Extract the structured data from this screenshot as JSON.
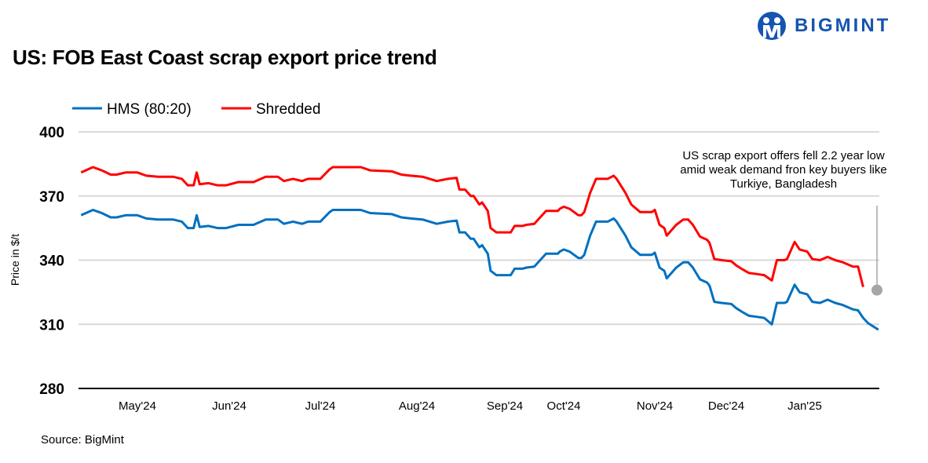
{
  "title": "US: FOB East Coast scrap export price trend",
  "logo": {
    "text": "BIGMINT",
    "color": "#1555b0"
  },
  "source": "Source: BigMint",
  "chart_data": {
    "type": "line",
    "title": "US: FOB East Coast scrap export price trend",
    "ylabel": "Price in $/t",
    "xlabel": "",
    "ylim": [
      280,
      400
    ],
    "y_ticks": [
      280,
      310,
      340,
      370,
      400
    ],
    "x_ticks": [
      "May'24",
      "Jun'24",
      "Jul'24",
      "Aug'24",
      "Sep'24",
      "Oct'24",
      "Nov'24",
      "Dec'24",
      "Jan'25"
    ],
    "grid": "horizontal",
    "legend": "top-left",
    "annotation": {
      "text_lines": [
        "US scrap export offers fell 2.2 year low",
        "amid weak demand fron key buyers like",
        "Turkiye, Bangladesh"
      ],
      "color": "#a6a6a6"
    },
    "series": [
      {
        "name": "HMS (80:20)",
        "color": "#0070c0",
        "points": [
          [
            "2024-04-12",
            361
          ],
          [
            "2024-04-16",
            363.5
          ],
          [
            "2024-04-19",
            362
          ],
          [
            "2024-04-22",
            360
          ],
          [
            "2024-04-24",
            360
          ],
          [
            "2024-04-27",
            361
          ],
          [
            "2024-05-01",
            361
          ],
          [
            "2024-05-04",
            359.5
          ],
          [
            "2024-05-08",
            359
          ],
          [
            "2024-05-13",
            359
          ],
          [
            "2024-05-16",
            358
          ],
          [
            "2024-05-18",
            355
          ],
          [
            "2024-05-20",
            355
          ],
          [
            "2024-05-21",
            361
          ],
          [
            "2024-05-22",
            355.5
          ],
          [
            "2024-05-25",
            356
          ],
          [
            "2024-05-28",
            355
          ],
          [
            "2024-05-31",
            355
          ],
          [
            "2024-06-04",
            356.5
          ],
          [
            "2024-06-09",
            356.5
          ],
          [
            "2024-06-13",
            359
          ],
          [
            "2024-06-17",
            359
          ],
          [
            "2024-06-19",
            357
          ],
          [
            "2024-06-22",
            358
          ],
          [
            "2024-06-25",
            357
          ],
          [
            "2024-06-27",
            358
          ],
          [
            "2024-07-01",
            358
          ],
          [
            "2024-07-04",
            362.5
          ],
          [
            "2024-07-05",
            363.5
          ],
          [
            "2024-07-14",
            363.5
          ],
          [
            "2024-07-17",
            362
          ],
          [
            "2024-07-24",
            361.5
          ],
          [
            "2024-07-27",
            360
          ],
          [
            "2024-07-30",
            359.5
          ],
          [
            "2024-08-03",
            359
          ],
          [
            "2024-08-08",
            357
          ],
          [
            "2024-08-12",
            358
          ],
          [
            "2024-08-15",
            358.5
          ],
          [
            "2024-08-16",
            353
          ],
          [
            "2024-08-18",
            353
          ],
          [
            "2024-08-20",
            350
          ],
          [
            "2024-08-21",
            350
          ],
          [
            "2024-08-23",
            346
          ],
          [
            "2024-08-24",
            347
          ],
          [
            "2024-08-26",
            343
          ],
          [
            "2024-08-27",
            335
          ],
          [
            "2024-08-29",
            333
          ],
          [
            "2024-08-31",
            333
          ],
          [
            "2024-09-04",
            333
          ],
          [
            "2024-09-06",
            336
          ],
          [
            "2024-09-10",
            336
          ],
          [
            "2024-09-12",
            336.5
          ],
          [
            "2024-09-16",
            337
          ],
          [
            "2024-09-19",
            340
          ],
          [
            "2024-09-22",
            343
          ],
          [
            "2024-09-28",
            343
          ],
          [
            "2024-09-29",
            344
          ],
          [
            "2024-10-01",
            345
          ],
          [
            "2024-10-03",
            344
          ],
          [
            "2024-10-06",
            341
          ],
          [
            "2024-10-07",
            341
          ],
          [
            "2024-10-08",
            342.5
          ],
          [
            "2024-10-10",
            351.5
          ],
          [
            "2024-10-12",
            358
          ],
          [
            "2024-10-16",
            358
          ],
          [
            "2024-10-18",
            359.5
          ],
          [
            "2024-10-19",
            358
          ],
          [
            "2024-10-22",
            351.5
          ],
          [
            "2024-10-24",
            346
          ],
          [
            "2024-10-27",
            342.5
          ],
          [
            "2024-10-31",
            342.5
          ],
          [
            "2024-11-01",
            343.5
          ],
          [
            "2024-11-03",
            336.5
          ],
          [
            "2024-11-05",
            335
          ],
          [
            "2024-11-06",
            331.5
          ],
          [
            "2024-11-10",
            336.5
          ],
          [
            "2024-11-13",
            339
          ],
          [
            "2024-11-15",
            339
          ],
          [
            "2024-11-17",
            336.5
          ],
          [
            "2024-11-20",
            331
          ],
          [
            "2024-11-23",
            329.5
          ],
          [
            "2024-11-24",
            328
          ],
          [
            "2024-11-26",
            320.5
          ],
          [
            "2024-11-29",
            320
          ],
          [
            "2024-12-03",
            319.5
          ],
          [
            "2024-12-05",
            317.5
          ],
          [
            "2024-12-07",
            316
          ],
          [
            "2024-12-10",
            314
          ],
          [
            "2024-12-13",
            313.5
          ],
          [
            "2024-12-16",
            313
          ],
          [
            "2024-12-19",
            310
          ],
          [
            "2024-12-21",
            320
          ],
          [
            "2024-12-24",
            320
          ],
          [
            "2024-12-25",
            320.5
          ],
          [
            "2024-12-28",
            328.5
          ],
          [
            "2024-12-30",
            325
          ],
          [
            "2025-01-02",
            324
          ],
          [
            "2025-01-04",
            320.5
          ],
          [
            "2025-01-07",
            320
          ],
          [
            "2025-01-10",
            321.5
          ],
          [
            "2025-01-13",
            320
          ],
          [
            "2025-01-16",
            319
          ],
          [
            "2025-01-20",
            317
          ],
          [
            "2025-01-22",
            316.5
          ],
          [
            "2025-01-24",
            313
          ],
          [
            "2025-01-26",
            310.5
          ],
          [
            "2025-01-30",
            307.5
          ]
        ]
      },
      {
        "name": "Shredded",
        "color": "#ff0000",
        "points": [
          [
            "2024-04-12",
            381
          ],
          [
            "2024-04-16",
            383.5
          ],
          [
            "2024-04-19",
            382
          ],
          [
            "2024-04-22",
            380
          ],
          [
            "2024-04-24",
            380
          ],
          [
            "2024-04-27",
            381
          ],
          [
            "2024-05-01",
            381
          ],
          [
            "2024-05-04",
            379.5
          ],
          [
            "2024-05-08",
            379
          ],
          [
            "2024-05-13",
            379
          ],
          [
            "2024-05-16",
            378
          ],
          [
            "2024-05-18",
            375
          ],
          [
            "2024-05-20",
            375
          ],
          [
            "2024-05-21",
            381
          ],
          [
            "2024-05-22",
            375.5
          ],
          [
            "2024-05-25",
            376
          ],
          [
            "2024-05-28",
            375
          ],
          [
            "2024-05-31",
            375
          ],
          [
            "2024-06-04",
            376.5
          ],
          [
            "2024-06-09",
            376.5
          ],
          [
            "2024-06-13",
            379
          ],
          [
            "2024-06-17",
            379
          ],
          [
            "2024-06-19",
            377
          ],
          [
            "2024-06-22",
            378
          ],
          [
            "2024-06-25",
            377
          ],
          [
            "2024-06-27",
            378
          ],
          [
            "2024-07-01",
            378
          ],
          [
            "2024-07-04",
            382.5
          ],
          [
            "2024-07-05",
            383.5
          ],
          [
            "2024-07-14",
            383.5
          ],
          [
            "2024-07-17",
            382
          ],
          [
            "2024-07-24",
            381.5
          ],
          [
            "2024-07-27",
            380
          ],
          [
            "2024-07-30",
            379.5
          ],
          [
            "2024-08-03",
            379
          ],
          [
            "2024-08-08",
            377
          ],
          [
            "2024-08-12",
            378
          ],
          [
            "2024-08-15",
            378.5
          ],
          [
            "2024-08-16",
            373
          ],
          [
            "2024-08-18",
            373
          ],
          [
            "2024-08-20",
            370
          ],
          [
            "2024-08-21",
            370
          ],
          [
            "2024-08-23",
            366
          ],
          [
            "2024-08-24",
            367
          ],
          [
            "2024-08-26",
            363
          ],
          [
            "2024-08-27",
            355
          ],
          [
            "2024-08-29",
            353
          ],
          [
            "2024-08-31",
            353
          ],
          [
            "2024-09-04",
            353
          ],
          [
            "2024-09-06",
            356
          ],
          [
            "2024-09-10",
            356
          ],
          [
            "2024-09-12",
            356.5
          ],
          [
            "2024-09-16",
            357
          ],
          [
            "2024-09-19",
            360
          ],
          [
            "2024-09-22",
            363
          ],
          [
            "2024-09-28",
            363
          ],
          [
            "2024-09-29",
            364
          ],
          [
            "2024-10-01",
            365
          ],
          [
            "2024-10-03",
            364
          ],
          [
            "2024-10-06",
            361
          ],
          [
            "2024-10-07",
            361
          ],
          [
            "2024-10-08",
            362.5
          ],
          [
            "2024-10-10",
            371.5
          ],
          [
            "2024-10-12",
            378
          ],
          [
            "2024-10-16",
            378
          ],
          [
            "2024-10-18",
            379.5
          ],
          [
            "2024-10-19",
            378
          ],
          [
            "2024-10-22",
            371.5
          ],
          [
            "2024-10-24",
            366
          ],
          [
            "2024-10-27",
            362.5
          ],
          [
            "2024-10-31",
            362.5
          ],
          [
            "2024-11-01",
            363.5
          ],
          [
            "2024-11-03",
            356.5
          ],
          [
            "2024-11-05",
            355
          ],
          [
            "2024-11-06",
            351.5
          ],
          [
            "2024-11-10",
            356.5
          ],
          [
            "2024-11-13",
            359
          ],
          [
            "2024-11-15",
            359
          ],
          [
            "2024-11-17",
            356.5
          ],
          [
            "2024-11-20",
            351
          ],
          [
            "2024-11-23",
            349.5
          ],
          [
            "2024-11-24",
            348
          ],
          [
            "2024-11-26",
            340.5
          ],
          [
            "2024-11-29",
            340
          ],
          [
            "2024-12-03",
            339.5
          ],
          [
            "2024-12-05",
            337.5
          ],
          [
            "2024-12-07",
            336
          ],
          [
            "2024-12-10",
            334
          ],
          [
            "2024-12-13",
            333.5
          ],
          [
            "2024-12-16",
            333
          ],
          [
            "2024-12-19",
            330.5
          ],
          [
            "2024-12-21",
            340
          ],
          [
            "2024-12-24",
            340
          ],
          [
            "2024-12-25",
            340.5
          ],
          [
            "2024-12-28",
            348.5
          ],
          [
            "2024-12-30",
            345
          ],
          [
            "2025-01-02",
            344
          ],
          [
            "2025-01-04",
            340.5
          ],
          [
            "2025-01-07",
            340
          ],
          [
            "2025-01-10",
            341.5
          ],
          [
            "2025-01-13",
            340
          ],
          [
            "2025-01-16",
            339
          ],
          [
            "2025-01-20",
            337
          ],
          [
            "2025-01-22",
            337
          ],
          [
            "2025-01-24",
            327.5
          ]
        ]
      }
    ]
  }
}
